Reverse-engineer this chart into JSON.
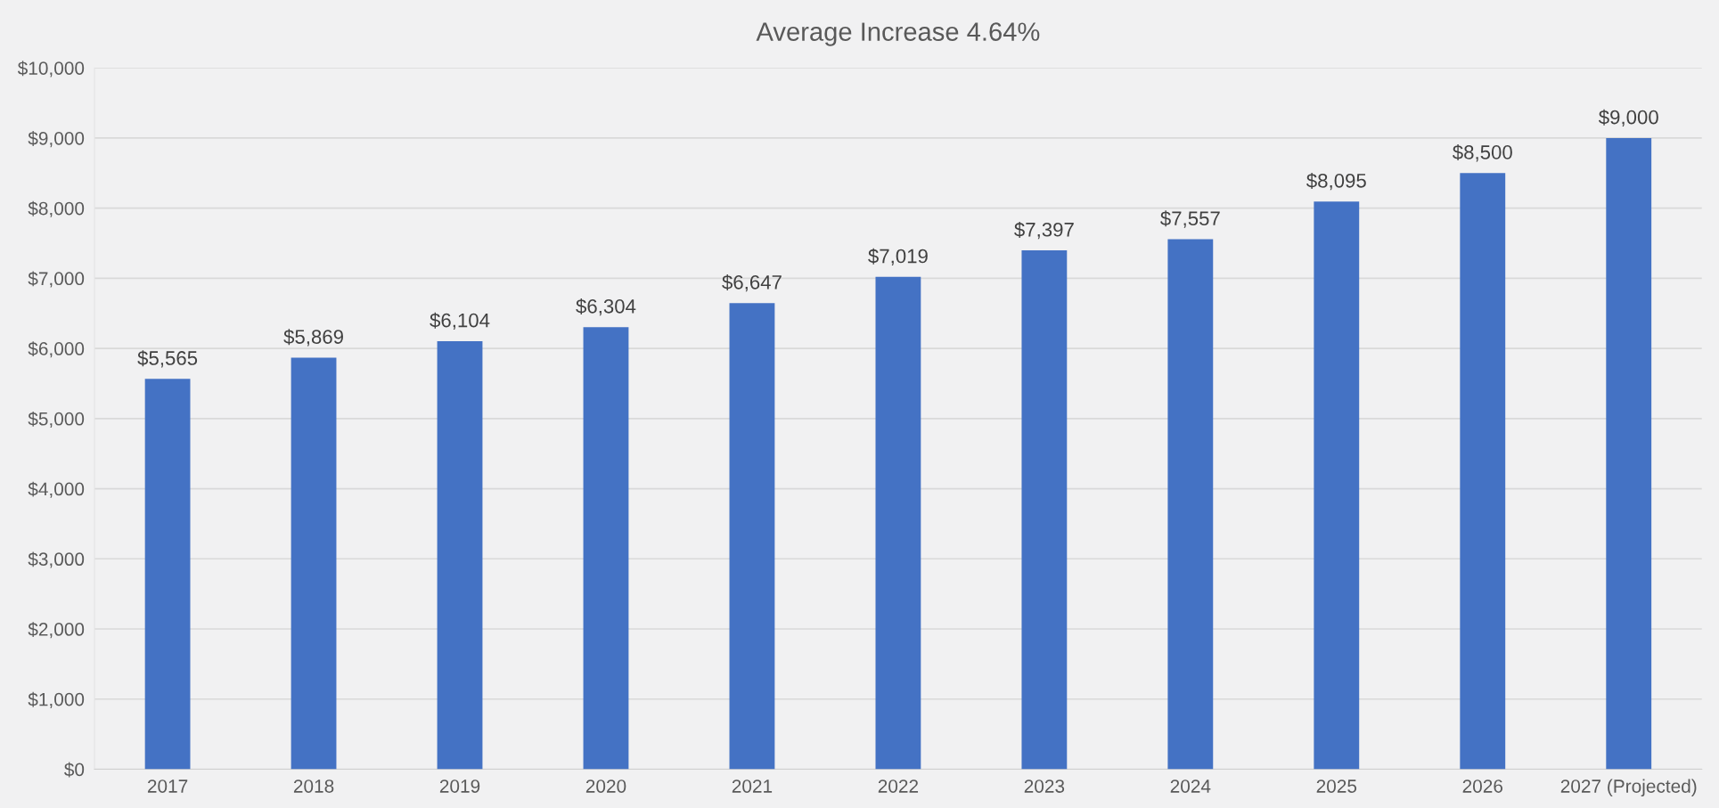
{
  "chart_data": {
    "type": "bar",
    "title": "Average Increase 4.64%",
    "categories": [
      "2017",
      "2018",
      "2019",
      "2020",
      "2021",
      "2022",
      "2023",
      "2024",
      "2025",
      "2026",
      "2027 (Projected)"
    ],
    "values": [
      5565,
      5869,
      6104,
      6304,
      6647,
      7019,
      7397,
      7557,
      8095,
      8500,
      9000
    ],
    "value_labels": [
      "$5,565",
      "$5,869",
      "$6,104",
      "$6,304",
      "$6,647",
      "$7,019",
      "$7,397",
      "$7,557",
      "$8,095",
      "$8,500",
      "$9,000"
    ],
    "color": "#4472c4",
    "ylim": [
      0,
      10000
    ],
    "yticks": [
      {
        "value": 0,
        "label": "$0"
      },
      {
        "value": 1000,
        "label": "$1,000"
      },
      {
        "value": 2000,
        "label": "$2,000"
      },
      {
        "value": 3000,
        "label": "$3,000"
      },
      {
        "value": 4000,
        "label": "$4,000"
      },
      {
        "value": 5000,
        "label": "$5,000"
      },
      {
        "value": 6000,
        "label": "$6,000"
      },
      {
        "value": 7000,
        "label": "$7,000"
      },
      {
        "value": 8000,
        "label": "$8,000"
      },
      {
        "value": 9000,
        "label": "$9,000"
      },
      {
        "value": 10000,
        "label": "$10,000"
      }
    ],
    "grid": "y"
  }
}
